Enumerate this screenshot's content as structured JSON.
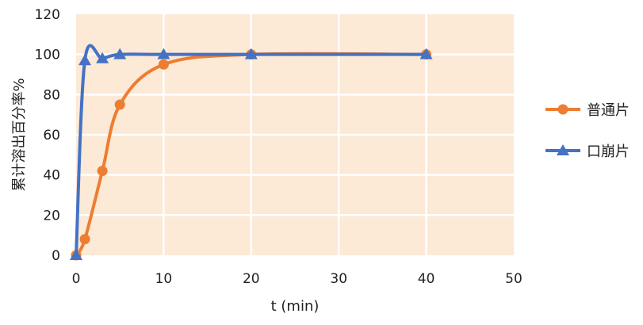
{
  "chart_data": {
    "type": "line",
    "title": "",
    "xlabel": "t (min)",
    "ylabel": "累计溶出百分率%",
    "xlim": [
      0,
      50
    ],
    "ylim": [
      0,
      120
    ],
    "xticks": [
      0,
      10,
      20,
      30,
      40,
      50
    ],
    "yticks": [
      0,
      20,
      40,
      60,
      80,
      100,
      120
    ],
    "grid": true,
    "smooth": true,
    "plot_background": "#FCE9D6",
    "legend_position": "right",
    "series": [
      {
        "name": "普通片",
        "color": "#ED7D31",
        "marker": "circle",
        "x": [
          0,
          1,
          3,
          5,
          10,
          20,
          40
        ],
        "y": [
          0,
          8,
          42,
          75,
          95,
          100,
          100
        ]
      },
      {
        "name": "口崩片",
        "color": "#4472C4",
        "marker": "triangle",
        "x": [
          0,
          1,
          3,
          5,
          10,
          20,
          40
        ],
        "y": [
          0,
          97,
          98,
          100,
          100,
          100,
          100
        ]
      }
    ]
  }
}
